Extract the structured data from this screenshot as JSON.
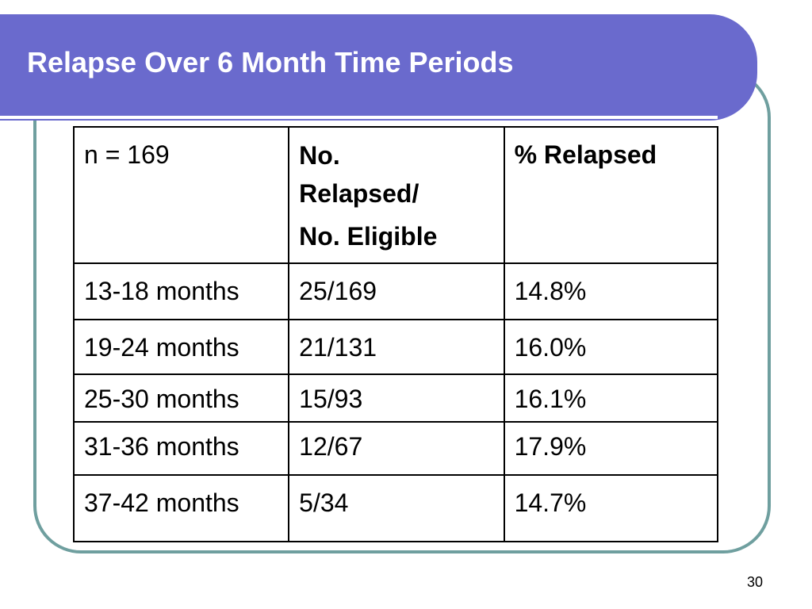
{
  "slide": {
    "title": "Relapse Over 6 Month Time Periods",
    "number": "30"
  },
  "table": {
    "header": {
      "col1": "n = 169",
      "col2_lines": [
        "No.",
        "Relapsed/",
        "No. Eligible"
      ],
      "col3": "% Relapsed"
    },
    "rows": [
      {
        "period": "13-18 months",
        "ratio": "25/169",
        "percent": "14.8%"
      },
      {
        "period": "19-24 months",
        "ratio": "21/131",
        "percent": "16.0%"
      },
      {
        "period": "25-30 months",
        "ratio": "15/93",
        "percent": "16.1%"
      },
      {
        "period": "31-36 months",
        "ratio": "12/67",
        "percent": "17.9%"
      },
      {
        "period": "37-42 months",
        "ratio": "5/34",
        "percent": "14.7%"
      }
    ]
  },
  "colors": {
    "title_bar": "#6a6acd",
    "frame_border": "#6f9f9f",
    "title_text": "#ffffff"
  }
}
